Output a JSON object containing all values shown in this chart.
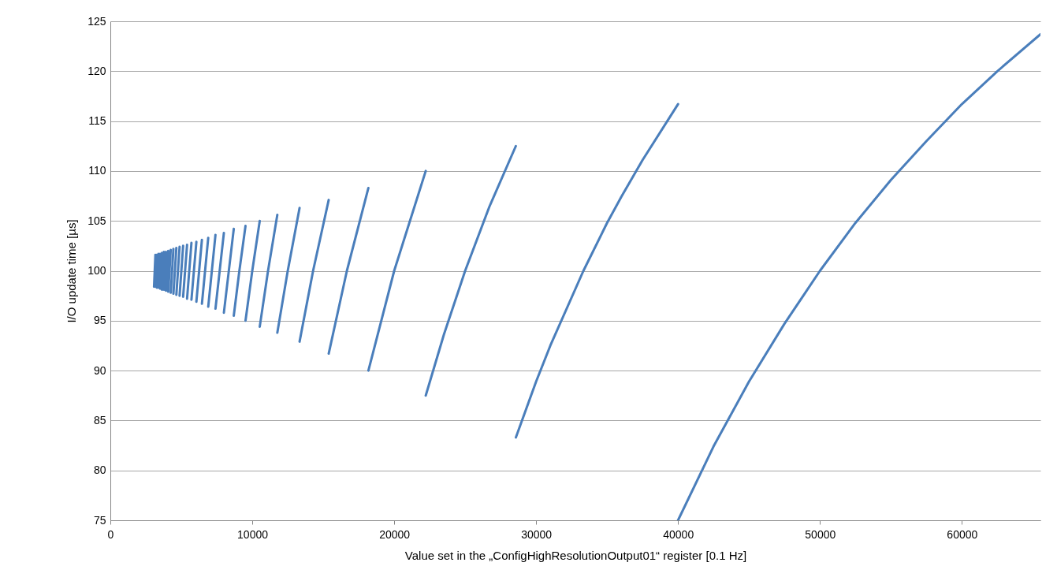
{
  "chart_data": {
    "type": "line",
    "xlabel": "Value set in the „ConfigHighResolutionOutput01“ register [0.1 Hz]",
    "ylabel": "I/O update time [µs]",
    "xlim": [
      0,
      65535
    ],
    "xticks": [
      0,
      10000,
      20000,
      30000,
      40000,
      50000,
      60000
    ],
    "ylim": [
      75,
      125
    ],
    "yticks": [
      75,
      80,
      85,
      90,
      95,
      100,
      105,
      110,
      115,
      120,
      125
    ],
    "grid": "y",
    "marker": "none",
    "line_style": "solid",
    "series": [
      {
        "color": "#4a7ebb",
        "x": [
          40000,
          42500,
          45000,
          47500,
          50000,
          52500,
          55000,
          57500,
          60000,
          62500,
          65535,
          null,
          28571,
          30000,
          31000,
          33333,
          35000,
          36000,
          37500,
          40000,
          null,
          22222,
          23500,
          25000,
          26700,
          28571,
          null,
          18182,
          20000,
          22222,
          null,
          15385,
          16667,
          18182,
          null,
          13333,
          14286,
          15385,
          null,
          11765,
          12500,
          13333,
          null,
          10526,
          11111,
          11765,
          null,
          9524,
          10000,
          10526,
          null,
          8696,
          9091,
          9524,
          null,
          8000,
          8696,
          null,
          7407,
          8000,
          null,
          6897,
          7407,
          null,
          6452,
          6897,
          null,
          6061,
          6452,
          null,
          5714,
          6061,
          null,
          5405,
          5714,
          null,
          5128,
          5405,
          null,
          4878,
          5128,
          null,
          4651,
          4878,
          null,
          4444,
          4651,
          null,
          4255,
          4444,
          null,
          4082,
          4255,
          null,
          3922,
          4082,
          null,
          3774,
          3922,
          null,
          3636,
          3774,
          null,
          3509,
          3636,
          null,
          3390,
          3509,
          null,
          3279,
          3390,
          null,
          3175,
          3279,
          null,
          3077,
          3175
        ],
        "values": [
          75,
          82.4,
          88.9,
          94.7,
          100,
          104.8,
          109.1,
          113,
          116.7,
          120,
          123.7,
          null,
          83.3,
          88.9,
          92.5,
          100,
          104.8,
          107.4,
          111.1,
          116.7,
          null,
          87.5,
          93.6,
          100,
          106.4,
          112.5,
          null,
          90,
          100,
          110,
          null,
          91.7,
          100,
          108.3,
          null,
          92.9,
          100,
          107.1,
          null,
          93.8,
          100,
          106.3,
          null,
          94.4,
          100,
          105.6,
          null,
          95,
          100,
          105,
          null,
          95.5,
          100,
          104.5,
          null,
          95.8,
          104.2,
          null,
          96.2,
          103.8,
          null,
          96.4,
          103.6,
          null,
          96.7,
          103.3,
          null,
          96.9,
          103.1,
          null,
          97.1,
          102.9,
          null,
          97.2,
          102.8,
          null,
          97.4,
          102.6,
          null,
          97.5,
          102.5,
          null,
          97.6,
          102.4,
          null,
          97.7,
          102.3,
          null,
          97.8,
          102.2,
          null,
          97.9,
          102.1,
          null,
          98,
          102,
          null,
          98.1,
          101.9,
          null,
          98.1,
          101.9,
          null,
          98.2,
          101.8,
          null,
          98.3,
          101.7,
          null,
          98.3,
          101.7,
          null,
          98.4,
          101.6,
          null,
          98.4,
          101.6
        ]
      }
    ]
  }
}
